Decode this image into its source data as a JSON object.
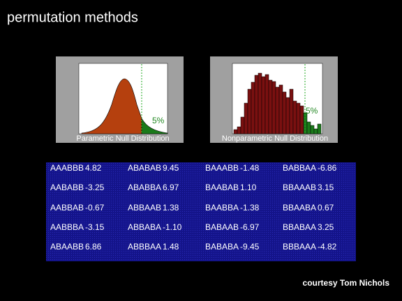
{
  "header": {
    "title": "permutation methods"
  },
  "figures": [
    {
      "caption": "Parametric Null Distribution",
      "annotation": "5%"
    },
    {
      "caption": "Nonparametric Null Distribution",
      "annotation": "5%",
      "counts": [
        6,
        10,
        24,
        44,
        64,
        74,
        84,
        87,
        82,
        85,
        77,
        75,
        67,
        70,
        60,
        52,
        64,
        47,
        44,
        40,
        30,
        17,
        12,
        7,
        14
      ]
    }
  ],
  "table": {
    "rows": [
      [
        [
          "AAABBB",
          "4.82"
        ],
        [
          "ABABAB",
          "9.45"
        ],
        [
          "BAAABB",
          "-1.48"
        ],
        [
          "BABBAA",
          "-6.86"
        ]
      ],
      [
        [
          "AABABB",
          "-3.25"
        ],
        [
          "ABABBA",
          "6.97"
        ],
        [
          "BAABAB",
          "1.10"
        ],
        [
          "BBAAAB",
          "3.15"
        ]
      ],
      [
        [
          "AABBAB",
          "-0.67"
        ],
        [
          "ABBAAB",
          "1.38"
        ],
        [
          "BAABBA",
          "-1.38"
        ],
        [
          "BBAABA",
          "0.67"
        ]
      ],
      [
        [
          "AABBBA",
          "-3.15"
        ],
        [
          "ABBABA",
          "-1.10"
        ],
        [
          "BABAAB",
          "-6.97"
        ],
        [
          "BBABAA",
          "3.25"
        ]
      ],
      [
        [
          "ABAABB",
          "6.86"
        ],
        [
          "ABBBAA",
          "1.48"
        ],
        [
          "BABABA",
          "-9.45"
        ],
        [
          "BBBAAA",
          "-4.82"
        ]
      ]
    ]
  },
  "footer": {
    "credit": "courtesy Tom Nichols"
  }
}
